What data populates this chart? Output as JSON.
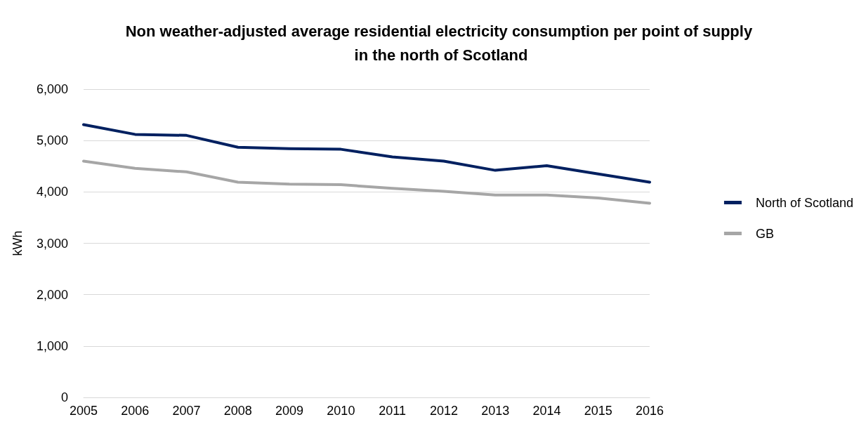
{
  "chart_data": {
    "type": "line",
    "title": "Non weather-adjusted average residential electricity consumption per point of supply in the north of Scotland",
    "ylabel": "kWh",
    "categories": [
      "2005",
      "2006",
      "2007",
      "2008",
      "2009",
      "2010",
      "2011",
      "2012",
      "2013",
      "2014",
      "2015",
      "2016"
    ],
    "series": [
      {
        "name": "North of Scotland",
        "color": "#002060",
        "values": [
          5310,
          5120,
          5100,
          4870,
          4840,
          4830,
          4680,
          4600,
          4420,
          4510,
          4350,
          4190
        ]
      },
      {
        "name": "GB",
        "color": "#a6a6a6",
        "values": [
          4600,
          4460,
          4390,
          4190,
          4150,
          4140,
          4070,
          4010,
          3940,
          3940,
          3880,
          3780
        ]
      }
    ],
    "ylim": [
      0,
      6000
    ],
    "yticks": [
      0,
      {
        "value": 1000,
        "label": "1,000"
      },
      {
        "value": 2000,
        "label": "2,000"
      },
      {
        "value": 3000,
        "label": "3,000"
      },
      {
        "value": 4000,
        "label": "4,000"
      },
      {
        "value": 5000,
        "label": "5,000"
      },
      {
        "value": 6000,
        "label": "6,000"
      }
    ],
    "grid": "y",
    "legend": "right",
    "marker": "none",
    "line_style": "solid"
  }
}
